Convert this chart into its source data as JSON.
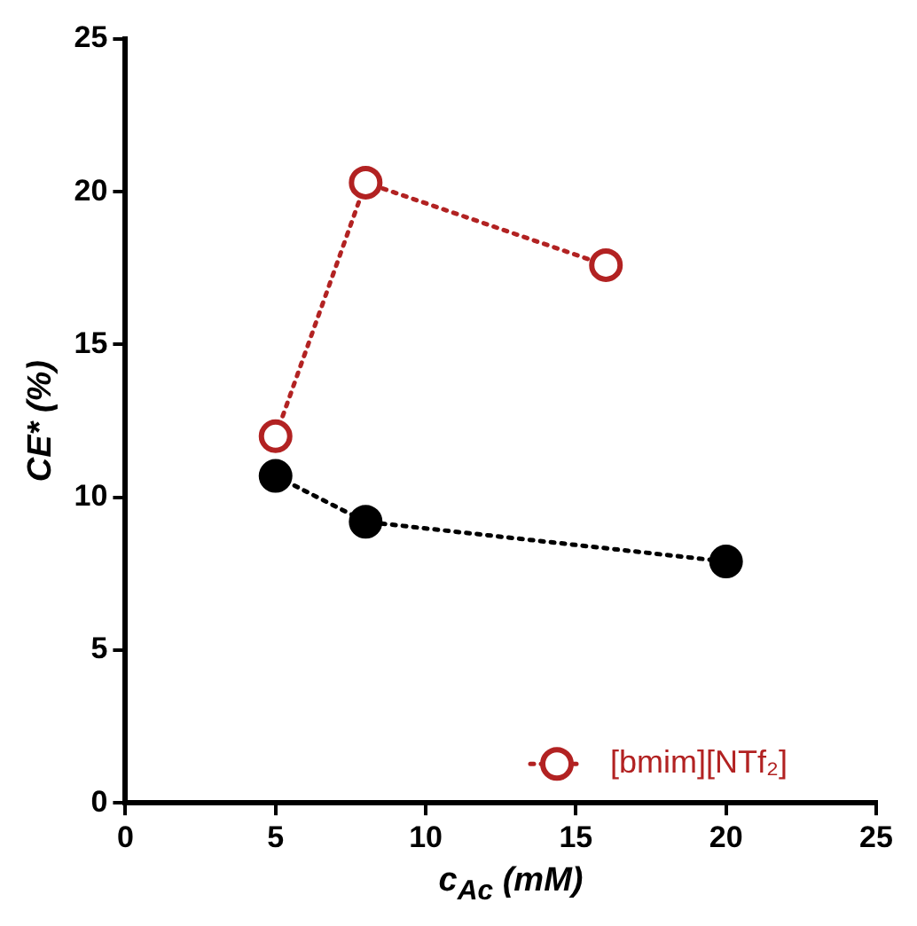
{
  "chart_data": {
    "type": "line",
    "xlabel": "c$_{Ac}$ (mM)",
    "ylabel": "CE* (%)",
    "xlim": [
      0,
      25
    ],
    "xticks": [
      0,
      5,
      10,
      15,
      20,
      25
    ],
    "ylim": [
      0,
      25
    ],
    "yticks": [
      0,
      5,
      10,
      15,
      20,
      25
    ],
    "grid": false,
    "legend": "bottom right",
    "marker": "circle",
    "line_style": "dotted",
    "series": [
      {
        "color": "#000000",
        "x": [
          5,
          8,
          20
        ],
        "values": [
          10.7,
          9.2,
          7.9
        ]
      },
      {
        "name": "[bmim][NTf₂]",
        "color": "#b22222",
        "x": [
          5,
          8,
          16
        ],
        "values": [
          12.0,
          20.3,
          17.6
        ]
      }
    ]
  }
}
